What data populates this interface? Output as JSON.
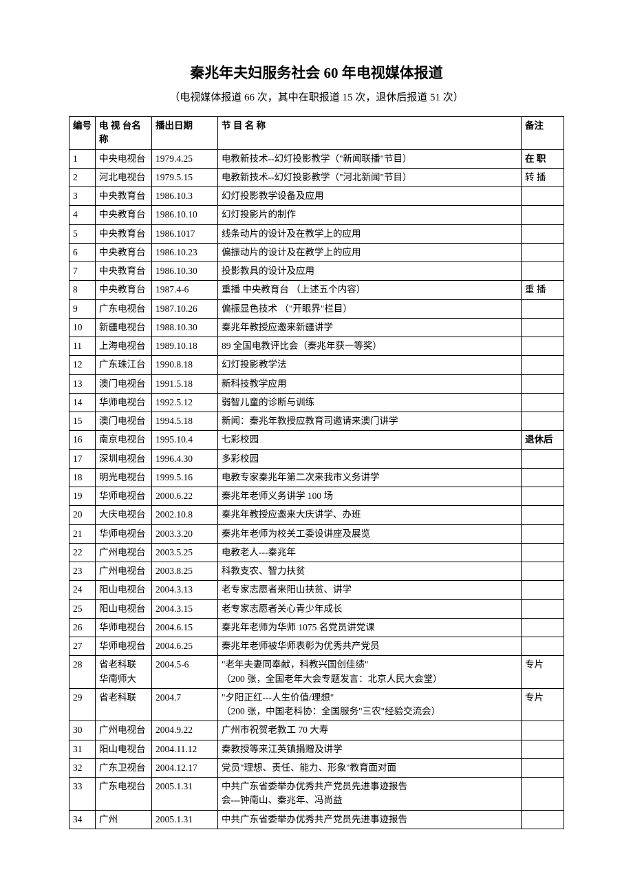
{
  "title": "秦兆年夫妇服务社会 60 年电视媒体报道",
  "subtitle": "（电视媒体报道 66 次，其中在职报道 15 次，退休后报道 51 次）",
  "headers": {
    "num": "编号",
    "station": "电 视 台名    称",
    "date": "播出日期",
    "program": "节        目        名        称",
    "note": "备注"
  },
  "rows": [
    {
      "num": "1",
      "station": "中央电视台",
      "date": "1979.4.25",
      "program": "电教新技术--幻灯投影教学（\"新闻联播\"节目）",
      "note": "在 职",
      "note_bold": true
    },
    {
      "num": "2",
      "station": "河北电视台",
      "date": "1979.5.15",
      "program": "电教新技术--幻灯投影教学（\"河北新闻\"节目）",
      "note": "转 播"
    },
    {
      "num": "3",
      "station": "中央教育台",
      "date": "1986.10.3",
      "program": "幻灯投影教学设备及应用",
      "note": ""
    },
    {
      "num": "4",
      "station": "中央教育台",
      "date": "1986.10.10",
      "program": "幻灯投影片的制作",
      "note": ""
    },
    {
      "num": "5",
      "station": "中央教育台",
      "date": "1986.1017",
      "program": "线条动片的设计及在教学上的应用",
      "note": ""
    },
    {
      "num": "6",
      "station": "中央教育台",
      "date": "1986.10.23",
      "program": "偏振动片的设计及在教学上的应用",
      "note": ""
    },
    {
      "num": "7",
      "station": "中央教育台",
      "date": "1986.10.30",
      "program": "投影教具的设计及应用",
      "note": ""
    },
    {
      "num": "8",
      "station": "中央教育台",
      "date": "1987.4-6",
      "program": "重播  中央教育台    （上述五个内容）",
      "note": "重 播"
    },
    {
      "num": "9",
      "station": "广东电视台",
      "date": "1987.10.26",
      "program": "偏振显色技术      （\"开眼界\"栏目）",
      "note": ""
    },
    {
      "num": "10",
      "station": "新疆电视台",
      "date": "1988.10.30",
      "program": "秦兆年教授应邀来新疆讲学",
      "note": ""
    },
    {
      "num": "11",
      "station": "上海电视台",
      "date": "1989.10.18",
      "program": "89 全国电教评比会（秦兆年获一等奖）",
      "note": ""
    },
    {
      "num": "12",
      "station": "广东珠江台",
      "date": "1990.8.18",
      "program": "幻灯投影教学法",
      "note": ""
    },
    {
      "num": "13",
      "station": "澳门电视台",
      "date": "1991.5.18",
      "program": "新科技教学应用",
      "note": ""
    },
    {
      "num": "14",
      "station": "华师电视台",
      "date": "1992.5.12",
      "program": "弱智儿童的诊断与训练",
      "note": ""
    },
    {
      "num": "15",
      "station": "澳门电视台",
      "date": "1994.5.18",
      "program": "新闻：秦兆年教授应教育司邀请来澳门讲学",
      "note": ""
    },
    {
      "num": "16",
      "station": "南京电视台",
      "date": "1995.10.4",
      "program": "七彩校园",
      "note": "退休后",
      "note_bold": true
    },
    {
      "num": "17",
      "station": "深圳电视台",
      "date": "1996.4.30",
      "program": "多彩校园",
      "note": ""
    },
    {
      "num": "18",
      "station": "明光电视台",
      "date": "1999.5.16",
      "program": "电教专家秦兆年第二次来我市义务讲学",
      "note": ""
    },
    {
      "num": "19",
      "station": "华师电视台",
      "date": "2000.6.22",
      "program": "秦兆年老师义务讲学 100 场",
      "note": ""
    },
    {
      "num": "20",
      "station": "大庆电视台",
      "date": "2002.10.8",
      "program": "秦兆年教授应邀来大庆讲学、办班",
      "note": ""
    },
    {
      "num": "21",
      "station": "华师电视台",
      "date": "2003.3.20",
      "program": "秦兆年老师为校关工委设讲座及展览",
      "note": ""
    },
    {
      "num": "22",
      "station": "广州电视台",
      "date": "2003.5.25",
      "program": "电教老人---秦兆年",
      "note": ""
    },
    {
      "num": "23",
      "station": "广州电视台",
      "date": "2003.8.25",
      "program": "科教支农、智力扶贫",
      "note": ""
    },
    {
      "num": "24",
      "station": "阳山电视台",
      "date": "2004.3.13",
      "program": "老专家志愿者来阳山扶贫、讲学",
      "note": ""
    },
    {
      "num": "25",
      "station": "阳山电视台",
      "date": "2004.3.15",
      "program": "老专家志愿者关心青少年成长",
      "note": ""
    },
    {
      "num": "26",
      "station": "华师电视台",
      "date": "2004.6.15",
      "program": "秦兆年老师为华师 1075 名党员讲党课",
      "note": ""
    },
    {
      "num": "27",
      "station": "华师电视台",
      "date": "2004.6.25",
      "program": "秦兆年老师被华师表彰为优秀共产党员",
      "note": ""
    },
    {
      "num": "28",
      "station": "省老科联\n华南师大",
      "date": "2004.5-6",
      "program": "\"老年夫妻同奉献，科教兴国创佳绩\"\n（200 张，全国老年大会专题发言：北京人民大会堂）",
      "note": "专片"
    },
    {
      "num": "29",
      "station": "省老科联",
      "date": "2004.7",
      "program": "\"夕阳正红---人生价值/理想\"\n（200 张，中国老科协：全国服务\"三农\"经验交流会）",
      "note": "专片"
    },
    {
      "num": "30",
      "station": "广州电视台",
      "date": "2004.9.22",
      "program": "广州市祝贺老教工 70 大寿",
      "note": ""
    },
    {
      "num": "31",
      "station": "阳山电视台",
      "date": "2004.11.12",
      "program": "秦教授等来江英镇捐赠及讲学",
      "note": ""
    },
    {
      "num": "32",
      "station": "广东卫视台",
      "date": "2004.12.17",
      "program": "党员\"理想、责任、能力、形象\"教育面对面",
      "note": ""
    },
    {
      "num": "33",
      "station": "广东电视台",
      "date": "2005.1.31",
      "program": "中共广东省委举办优秀共产党员先进事迹报告\n会---钟南山、秦兆年、冯尚益",
      "note": ""
    },
    {
      "num": "34",
      "station": "广州",
      "date": "2005.1.31",
      "program": "中共广东省委举办优秀共产党员先进事迹报告",
      "note": ""
    }
  ]
}
